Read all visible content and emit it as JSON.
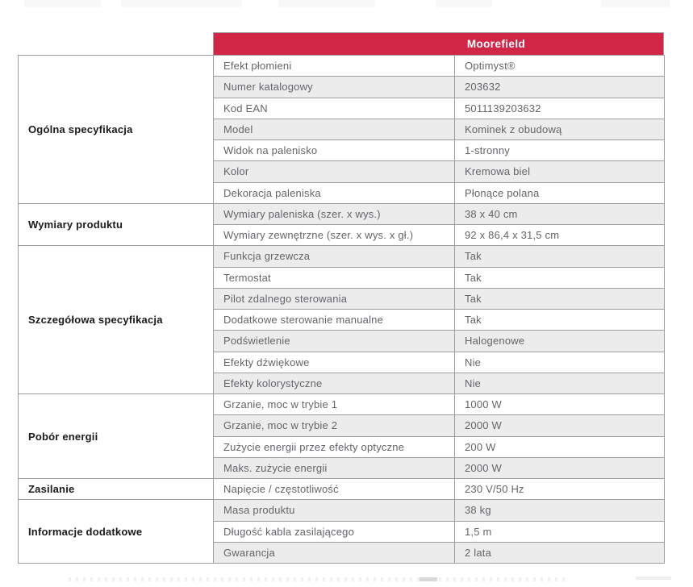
{
  "header": {
    "product_name": "Moorefield"
  },
  "colors": {
    "header_bg": "#d22647",
    "header_text": "#ffffff",
    "row_alt_bg": "#ececed",
    "border": "#9e9e9e",
    "cell_text": "#636569",
    "section_text": "#1a1a1c"
  },
  "table": {
    "sections": [
      {
        "label": "Ogólna specyfikacja",
        "rows": [
          {
            "attribute": "Efekt płomieni",
            "value": "Optimyst®"
          },
          {
            "attribute": "Numer katalogowy",
            "value": "203632"
          },
          {
            "attribute": "Kod EAN",
            "value": "5011139203632"
          },
          {
            "attribute": "Model",
            "value": "Kominek z obudową"
          },
          {
            "attribute": "Widok na palenisko",
            "value": "1-stronny"
          },
          {
            "attribute": "Kolor",
            "value": "Kremowa biel"
          },
          {
            "attribute": "Dekoracja paleniska",
            "value": "Płonące polana"
          }
        ]
      },
      {
        "label": "Wymiary produktu",
        "rows": [
          {
            "attribute": "Wymiary paleniska (szer. x wys.)",
            "value": "38 x 40 cm"
          },
          {
            "attribute": "Wymiary zewnętrzne (szer. x wys. x gł.)",
            "value": "92 x 86,4 x 31,5 cm"
          }
        ]
      },
      {
        "label": "Szczegółowa specyfikacja",
        "rows": [
          {
            "attribute": "Funkcja grzewcza",
            "value": "Tak"
          },
          {
            "attribute": "Termostat",
            "value": "Tak"
          },
          {
            "attribute": "Pilot zdalnego sterowania",
            "value": "Tak"
          },
          {
            "attribute": "Dodatkowe sterowanie manualne",
            "value": "Tak"
          },
          {
            "attribute": "Podświetlenie",
            "value": "Halogenowe"
          },
          {
            "attribute": "Efekty dźwiękowe",
            "value": "Nie"
          },
          {
            "attribute": "Efekty kolorystyczne",
            "value": "Nie"
          }
        ]
      },
      {
        "label": "Pobór energii",
        "rows": [
          {
            "attribute": "Grzanie, moc w trybie 1",
            "value": "1000 W"
          },
          {
            "attribute": "Grzanie, moc w trybie 2",
            "value": "2000 W"
          },
          {
            "attribute": "Zużycie energii przez efekty optyczne",
            "value": "200 W"
          },
          {
            "attribute": "Maks. zużycie energii",
            "value": "2000 W"
          }
        ]
      },
      {
        "label": "Zasilanie",
        "rows": [
          {
            "attribute": "Napięcie / częstotliwość",
            "value": "230 V/50 Hz"
          }
        ]
      },
      {
        "label": "Informacje dodatkowe",
        "rows": [
          {
            "attribute": "Masa produktu",
            "value": "38 kg"
          },
          {
            "attribute": "Długość kabla zasilającego",
            "value": "1,5 m"
          },
          {
            "attribute": "Gwarancja",
            "value": "2 lata"
          }
        ]
      }
    ]
  }
}
